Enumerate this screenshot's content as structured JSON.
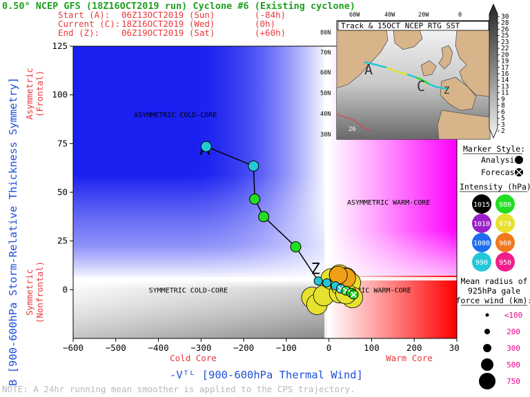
{
  "header": {
    "title": "0.50° NCEP GFS (18Z16OCT2019 run) Cyclone #6 (Existing cyclone)",
    "start": {
      "label": "Start (A):",
      "time": "06Z13OCT2019 (Sun)",
      "offset": "(-84h)"
    },
    "current": {
      "label": "Current (C):",
      "time": "18Z16OCT2019 (Wed)",
      "offset": "(0h)"
    },
    "end": {
      "label": "End (Z):",
      "time": "06Z19OCT2019 (Sat)",
      "offset": "(+60h)"
    }
  },
  "note": "NOTE:  A 24hr running mean smoother is applied to the CPS trajectory.",
  "colors": {
    "green_text": "#1f9e1f",
    "red_text": "#e8383b",
    "blue_text": "#1e50d8",
    "pink_text": "#e8008c",
    "cold_blue": "#1a23f0",
    "warm_magenta": "#ff00ff",
    "warm_red": "#ff0000",
    "gray": "#888888"
  },
  "chart_data": {
    "type": "scatter",
    "title": "",
    "xlabel": "-Vᵀᴸ [900-600hPa Thermal Wind]",
    "ylabel": "B [900-600hPa Storm-Relative Thickness Symmetry]",
    "xlim": [
      -600,
      300
    ],
    "ylim": [
      -25,
      125
    ],
    "xticks": [
      -600,
      -500,
      -400,
      -300,
      -200,
      -100,
      0,
      100,
      200,
      300
    ],
    "yticks": [
      0,
      25,
      50,
      75,
      100,
      125
    ],
    "x_sublabels": {
      "left": "Cold Core",
      "right": "Warm Core"
    },
    "y_sublabels": {
      "top": "Asymmetric\n(Frontal)",
      "bottom": "Symmetric\n(Nonfrontal)"
    },
    "quadrant_labels": [
      {
        "text": "ASYMMETRIC COLD-CORE",
        "x": -360,
        "y": 90
      },
      {
        "text": "ASYMMETRIC WARM-CORE",
        "x": 140,
        "y": 45
      },
      {
        "text": "SYMMETRIC COLD-CORE",
        "x": -330,
        "y": 0
      },
      {
        "text": "SYMMETRIC WARM-CORE",
        "x": 100,
        "y": 0
      }
    ],
    "markers_text": {
      "start": "A",
      "end": "Z"
    },
    "analysis_track": [
      {
        "x": -288,
        "y": 73.5,
        "intensity": 990
      },
      {
        "x": -177,
        "y": 63.5,
        "intensity": 990
      },
      {
        "x": -174,
        "y": 46.5,
        "intensity": 980
      },
      {
        "x": -153,
        "y": 37.5,
        "intensity": 980
      },
      {
        "x": -78,
        "y": 22,
        "intensity": 980
      },
      {
        "x": -25,
        "y": 4.5,
        "intensity": 990
      },
      {
        "x": -5,
        "y": 3.5,
        "intensity": 990
      },
      {
        "x": 15,
        "y": 2,
        "intensity": 990
      }
    ],
    "forecast_track": [
      {
        "x": 28,
        "y": 0.5,
        "intensity": 990
      },
      {
        "x": 40,
        "y": -0.5,
        "intensity": 980
      },
      {
        "x": 52,
        "y": -1.5,
        "intensity": 980
      },
      {
        "x": 58,
        "y": -2.5,
        "intensity": 980
      }
    ],
    "size_circles": [
      {
        "x": -40,
        "y": -4
      },
      {
        "x": -28,
        "y": -7.5
      },
      {
        "x": -12,
        "y": -3
      },
      {
        "x": 5,
        "y": 5.5
      },
      {
        "x": 25,
        "y": 7.5
      },
      {
        "x": 40,
        "y": 6
      },
      {
        "x": 25,
        "y": -1.5
      },
      {
        "x": 28,
        "y": 2.5
      },
      {
        "x": 50,
        "y": 3.5
      },
      {
        "x": 55,
        "y": -4
      },
      {
        "x": 40,
        "y": -2
      }
    ]
  },
  "legend": {
    "marker_title": "Marker Style:",
    "analysis_label": "Analysis:",
    "forecast_label": "Forecast:",
    "intensity_title": "Intensity (hPa):",
    "intensities": [
      {
        "value": "1015",
        "color": "#000000",
        "text_color": "#ffffff"
      },
      {
        "value": "980",
        "color": "#22dd22",
        "text_color": "#ffffff"
      },
      {
        "value": "1010",
        "color": "#9b1fc8",
        "text_color": "#ffffff"
      },
      {
        "value": "970",
        "color": "#e6e12e",
        "text_color": "#ffffff"
      },
      {
        "value": "1000",
        "color": "#1e6cf0",
        "text_color": "#ffffff"
      },
      {
        "value": "960",
        "color": "#f0781e",
        "text_color": "#ffffff"
      },
      {
        "value": "990",
        "color": "#22c8d8",
        "text_color": "#ffffff"
      },
      {
        "value": "950",
        "color": "#f01e8c",
        "text_color": "#ffffff"
      }
    ],
    "radius_title_lines": [
      "Mean radius of",
      "925hPa gale",
      "force wind (km):"
    ],
    "radius_sizes": [
      {
        "label": "<100",
        "r": 2.5
      },
      {
        "label": "200",
        "r": 4
      },
      {
        "label": "300",
        "r": 6
      },
      {
        "label": "500",
        "r": 9
      },
      {
        "label": "750",
        "r": 12
      }
    ]
  },
  "map": {
    "title": "Track & 15OCT NCEP RTG SST",
    "lon_labels": [
      "60W",
      "40W",
      "20W",
      "0"
    ],
    "lat_labels": [
      "80N",
      "70N",
      "60N",
      "50N",
      "40N",
      "30N"
    ],
    "start_marker": "A",
    "current_marker": "C",
    "end_marker": "Z",
    "contour_label": "26",
    "colorbar_labels": [
      "30",
      "28",
      "26",
      "25",
      "23",
      "22",
      "20",
      "19",
      "17",
      "16",
      "14",
      "13",
      "11",
      "9",
      "8",
      "6",
      "5",
      "3",
      "2"
    ]
  }
}
